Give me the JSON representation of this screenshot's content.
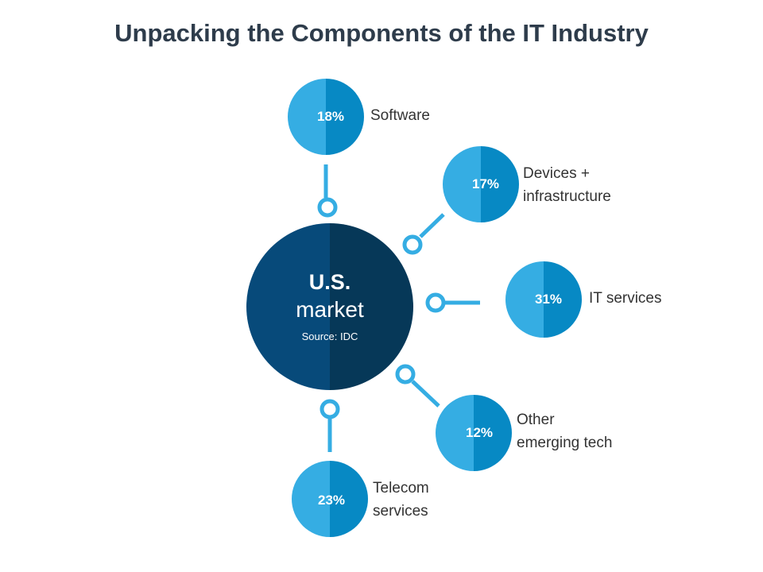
{
  "title": "Unpacking the Components of the IT Industry",
  "hub": {
    "line1": "U.S.",
    "line2": "market",
    "source": "Source: IDC"
  },
  "segments": [
    {
      "name": "Software",
      "lines": [
        "Software"
      ],
      "percent": 18,
      "label": "18%"
    },
    {
      "name": "Devices + infrastructure",
      "lines": [
        "Devices +",
        "infrastructure"
      ],
      "percent": 17,
      "label": "17%"
    },
    {
      "name": "IT services",
      "lines": [
        "IT services"
      ],
      "percent": 31,
      "label": "31%"
    },
    {
      "name": "Other emerging tech",
      "lines": [
        "Other",
        "emerging tech"
      ],
      "percent": 12,
      "label": "12%"
    },
    {
      "name": "Telecom services",
      "lines": [
        "Telecom",
        "services"
      ],
      "percent": 23,
      "label": "23%"
    }
  ],
  "colors": {
    "hub_left": "#074a7a",
    "hub_right": "#063858",
    "bubble_left": "#35ade3",
    "bubble_right": "#0789c4",
    "connector": "#35ade3",
    "title": "#2e3c4b",
    "label": "#333333"
  }
}
